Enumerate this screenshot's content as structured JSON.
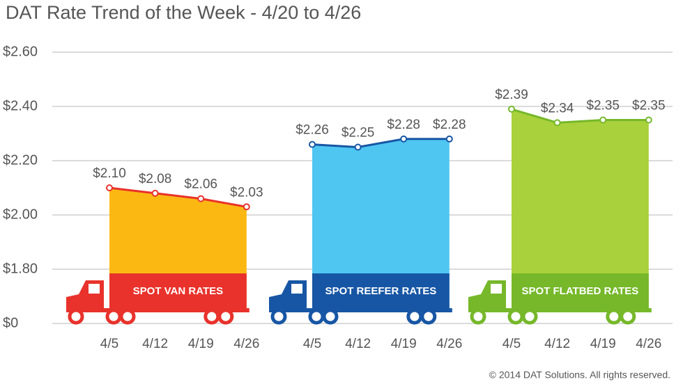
{
  "chart_data": {
    "type": "area",
    "title": "DAT Rate Trend of the Week - 4/20 to 4/26",
    "categories": [
      "4/5",
      "4/12",
      "4/19",
      "4/26"
    ],
    "series": [
      {
        "name": "SPOT VAN RATES",
        "color": "#e8322b",
        "area_color": "#fbb813",
        "values": [
          2.1,
          2.08,
          2.06,
          2.03
        ],
        "value_labels": [
          "$2.10",
          "$2.08",
          "$2.06",
          "$2.03"
        ]
      },
      {
        "name": "SPOT REEFER RATES",
        "color": "#1756a4",
        "area_color": "#4fc6f2",
        "values": [
          2.26,
          2.25,
          2.28,
          2.28
        ],
        "value_labels": [
          "$2.26",
          "$2.25",
          "$2.28",
          "$2.28"
        ]
      },
      {
        "name": "SPOT FLATBED RATES",
        "color": "#76b82a",
        "area_color": "#a9d13b",
        "values": [
          2.39,
          2.34,
          2.35,
          2.35
        ],
        "value_labels": [
          "$2.39",
          "$2.34",
          "$2.35",
          "$2.35"
        ]
      }
    ],
    "ylim": [
      0,
      2.6
    ],
    "yticks": [
      {
        "value": 0,
        "label": "$0"
      },
      {
        "value": 1.8,
        "label": "$1.80"
      },
      {
        "value": 2.0,
        "label": "$2.00"
      },
      {
        "value": 2.2,
        "label": "$2.20"
      },
      {
        "value": 2.4,
        "label": "$2.40"
      },
      {
        "value": 2.6,
        "label": "$2.60"
      }
    ],
    "grid": true,
    "footnote": "© 2014 DAT Solutions. All rights reserved."
  }
}
